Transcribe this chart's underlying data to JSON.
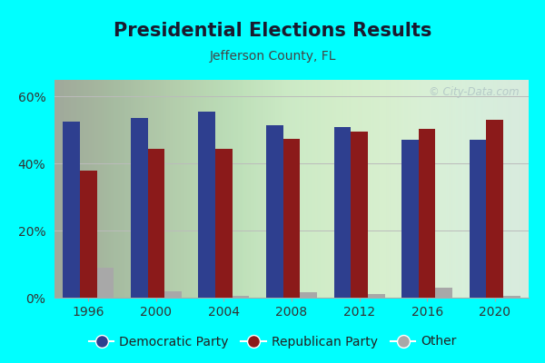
{
  "title": "Presidential Elections Results",
  "subtitle": "Jefferson County, FL",
  "watermark": "© City-Data.com",
  "years": [
    1996,
    2000,
    2004,
    2008,
    2012,
    2016,
    2020
  ],
  "democratic": [
    52.5,
    53.5,
    55.5,
    51.5,
    51.0,
    47.0,
    47.0
  ],
  "republican": [
    38.0,
    44.5,
    44.5,
    47.5,
    49.5,
    50.5,
    53.0
  ],
  "other": [
    9.0,
    2.0,
    0.5,
    1.5,
    1.0,
    3.0,
    0.5
  ],
  "dem_color": "#2E3F8F",
  "rep_color": "#8B1A1A",
  "other_color": "#A8A8A8",
  "background_outer": "#00FFFF",
  "ylim": [
    0,
    65
  ],
  "yticks": [
    0,
    20,
    40,
    60
  ],
  "ytick_labels": [
    "0%",
    "20%",
    "40%",
    "60%"
  ],
  "bar_width": 0.25,
  "title_fontsize": 15,
  "subtitle_fontsize": 10,
  "legend_fontsize": 10,
  "tick_fontsize": 10
}
